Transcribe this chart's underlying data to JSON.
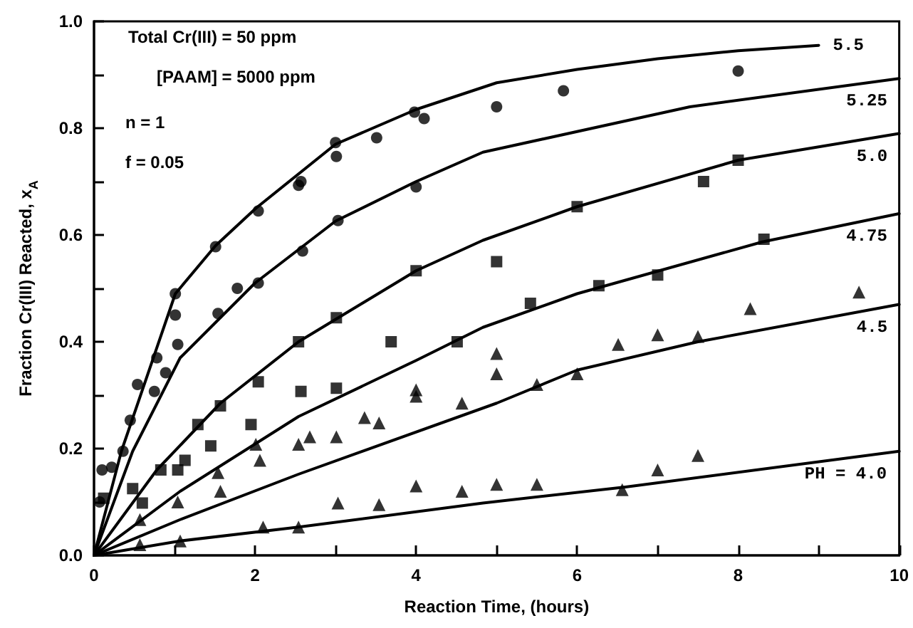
{
  "chart_data": {
    "type": "scatter",
    "xlabel": "Reaction Time, (hours)",
    "ylabel": "Fraction Cr(III) Reacted, x$_{A}$",
    "xlim": [
      0,
      10
    ],
    "xticks": [
      0,
      {
        "value": 1,
        "label": null
      },
      2,
      {
        "value": 3,
        "label": null
      },
      4,
      {
        "value": 5,
        "label": null
      },
      6,
      {
        "value": 7,
        "label": null
      },
      8,
      {
        "value": 9,
        "label": null
      },
      10
    ],
    "ylim": [
      0,
      1
    ],
    "yticks": [
      {
        "value": 0,
        "label": "0.0"
      },
      {
        "value": 0.1,
        "label": null
      },
      0.2,
      {
        "value": 0.3,
        "label": null
      },
      0.4,
      {
        "value": 0.5,
        "label": null
      },
      0.6,
      {
        "value": 0.7,
        "label": null
      },
      0.8,
      {
        "value": 0.9,
        "label": null
      },
      {
        "value": 1,
        "label": "1.0"
      }
    ],
    "grid": false,
    "legend": false,
    "series": [
      {
        "type": "line",
        "name": "5.5",
        "color": "#000000",
        "marker": "none",
        "x": [
          0,
          0.34,
          1.01,
          1.51,
          2.01,
          3.0,
          4.0,
          5.0,
          6.0,
          7.0,
          8.0,
          9.0
        ],
        "values": [
          0,
          0.195,
          0.49,
          0.58,
          0.65,
          0.77,
          0.835,
          0.885,
          0.91,
          0.93,
          0.945,
          0.955
        ]
      },
      {
        "type": "line",
        "name": "5.25",
        "color": "#000000",
        "marker": "none",
        "x": [
          0,
          0.48,
          1.07,
          2.0,
          3.0,
          4.0,
          4.83,
          7.4,
          10
        ],
        "values": [
          0,
          0.195,
          0.37,
          0.51,
          0.626,
          0.7,
          0.755,
          0.84,
          0.893
        ]
      },
      {
        "type": "line",
        "name": "5.0",
        "color": "#000000",
        "marker": "none",
        "x": [
          0,
          0.78,
          1.57,
          2.54,
          4.0,
          4.83,
          6.0,
          8.0,
          10
        ],
        "values": [
          0,
          0.16,
          0.285,
          0.4,
          0.533,
          0.59,
          0.653,
          0.74,
          0.79
        ]
      },
      {
        "type": "line",
        "name": "4.75",
        "color": "#000000",
        "marker": "none",
        "x": [
          0,
          1.07,
          2.54,
          4.0,
          4.83,
          6.0,
          8.3,
          10
        ],
        "values": [
          0,
          0.12,
          0.26,
          0.365,
          0.427,
          0.49,
          0.587,
          0.64
        ]
      },
      {
        "type": "line",
        "name": "4.5",
        "color": "#000000",
        "marker": "none",
        "x": [
          0,
          1.07,
          2.54,
          5.0,
          6.0,
          7.5,
          10
        ],
        "values": [
          0,
          0.067,
          0.152,
          0.285,
          0.347,
          0.4,
          0.47
        ]
      },
      {
        "type": "line",
        "name": "PH = 4.0",
        "color": "#000000",
        "marker": "none",
        "x": [
          0,
          1.07,
          2.54,
          4.83,
          6.6,
          10
        ],
        "values": [
          0,
          0.027,
          0.053,
          0.098,
          0.128,
          0.195
        ]
      },
      {
        "color": "#000000",
        "marker": "circle",
        "x": [
          0.45,
          0.54,
          1.01,
          2.54,
          3.01,
          3.51,
          3.98,
          5.0
        ],
        "values": [
          0.253,
          0.32,
          0.49,
          0.693,
          0.747,
          0.782,
          0.83,
          0.84
        ]
      },
      {
        "color": "#000000",
        "marker": "circle",
        "x": [
          0.78,
          1.01,
          1.51,
          2.04,
          2.57,
          3.0,
          4.1,
          5.83,
          8.0
        ],
        "values": [
          0.37,
          0.45,
          0.578,
          0.645,
          0.7,
          0.773,
          0.818,
          0.87,
          0.907
        ]
      },
      {
        "color": "#000000",
        "marker": "circle",
        "x": [
          0.07,
          0.1,
          0.22,
          0.36,
          0.75,
          0.89,
          1.04,
          1.54,
          1.78,
          2.04,
          2.59,
          3.03,
          4.0
        ],
        "values": [
          0.1,
          0.16,
          0.165,
          0.195,
          0.307,
          0.342,
          0.395,
          0.453,
          0.5,
          0.51,
          0.57,
          0.627,
          0.69
        ]
      },
      {
        "color": "#000000",
        "marker": "square",
        "x": [
          0.48,
          0.83,
          1.04,
          1.29,
          1.57,
          2.04,
          2.54,
          3.01,
          4.0,
          5.0,
          6.0,
          7.57,
          8.0
        ],
        "values": [
          0.125,
          0.16,
          0.16,
          0.245,
          0.28,
          0.325,
          0.4,
          0.445,
          0.533,
          0.55,
          0.653,
          0.7,
          0.74
        ]
      },
      {
        "color": "#000000",
        "marker": "square",
        "x": [
          0.12,
          0.6,
          1.13,
          1.45,
          1.95,
          2.57,
          3.01,
          3.69,
          4.51,
          5.42,
          6.27,
          7.0,
          8.32
        ],
        "values": [
          0.107,
          0.098,
          0.178,
          0.205,
          0.245,
          0.307,
          0.313,
          0.4,
          0.4,
          0.472,
          0.505,
          0.525,
          0.592
        ]
      },
      {
        "color": "#000000",
        "marker": "triangle",
        "x": [
          0.57,
          1.57,
          2.06,
          2.54,
          3.01,
          3.54,
          4.0,
          4.57,
          5.0,
          5.5,
          6.0,
          6.51,
          7.0,
          7.5
        ],
        "values": [
          0.067,
          0.12,
          0.178,
          0.208,
          0.222,
          0.248,
          0.298,
          0.285,
          0.34,
          0.32,
          0.34,
          0.395,
          0.413,
          0.41
        ]
      },
      {
        "color": "#000000",
        "marker": "triangle",
        "x": [
          1.04,
          1.54,
          2.01,
          2.68,
          3.36,
          4.0,
          5.0,
          8.15,
          9.5
        ],
        "values": [
          0.1,
          0.155,
          0.208,
          0.222,
          0.258,
          0.31,
          0.378,
          0.462,
          0.493
        ]
      },
      {
        "color": "#000000",
        "marker": "triangle",
        "x": [
          0.57,
          1.07,
          2.1,
          2.54,
          3.03,
          3.54,
          4.0,
          4.57,
          5.0,
          5.5,
          6.56,
          7.0,
          7.5
        ],
        "values": [
          0.02,
          0.027,
          0.053,
          0.053,
          0.098,
          0.095,
          0.13,
          0.12,
          0.133,
          0.133,
          0.123,
          0.16,
          0.187
        ]
      }
    ],
    "annotations": [
      "Total Cr(III) = 50 ppm",
      "[PAAM] = 5000 ppm",
      "n = 1",
      "f = 0.05"
    ]
  }
}
